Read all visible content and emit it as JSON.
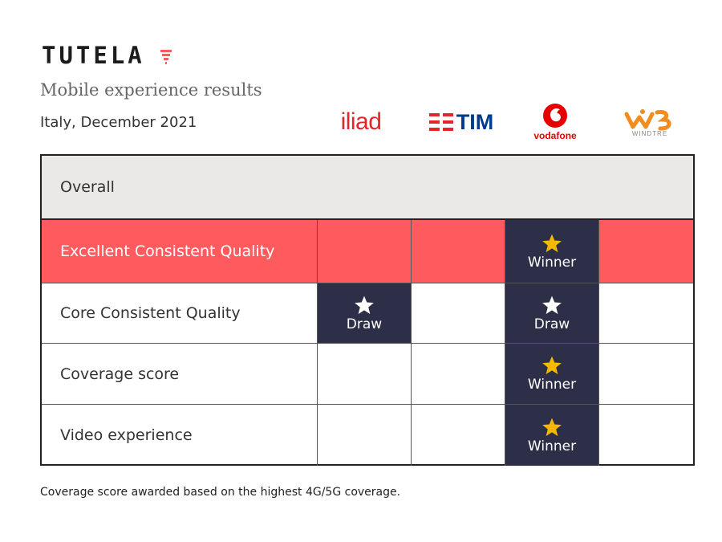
{
  "header": {
    "brand": "TUTELA",
    "subtitle": "Mobile experience results",
    "region_date": "Italy, December 2021"
  },
  "operators": [
    {
      "name": "iliad",
      "logo_text": "iliad",
      "color": "#e4262a"
    },
    {
      "name": "TIM",
      "logo_text": "TIM",
      "color": "#003b8e"
    },
    {
      "name": "vodafone",
      "logo_text": "vodafone",
      "color": "#e60000"
    },
    {
      "name": "WINDTRE",
      "logo_text": "WINDTRE",
      "color": "#f28c1e"
    }
  ],
  "table": {
    "section_label": "Overall",
    "rows": [
      {
        "label": "Excellent Consistent Quality",
        "cells": [
          "",
          "",
          "Winner",
          ""
        ]
      },
      {
        "label": "Core Consistent Quality",
        "cells": [
          "Draw",
          "",
          "Draw",
          ""
        ]
      },
      {
        "label": "Coverage score",
        "cells": [
          "",
          "",
          "Winner",
          ""
        ]
      },
      {
        "label": "Video experience",
        "cells": [
          "",
          "",
          "Winner",
          ""
        ]
      }
    ]
  },
  "footnote": "Coverage score awarded based on the highest 4G/5G coverage.",
  "colors": {
    "highlight_row": "#ff5b5f",
    "badge_bg": "#2c2f47",
    "winner_star": "#f5b800",
    "draw_star": "#ffffff"
  }
}
